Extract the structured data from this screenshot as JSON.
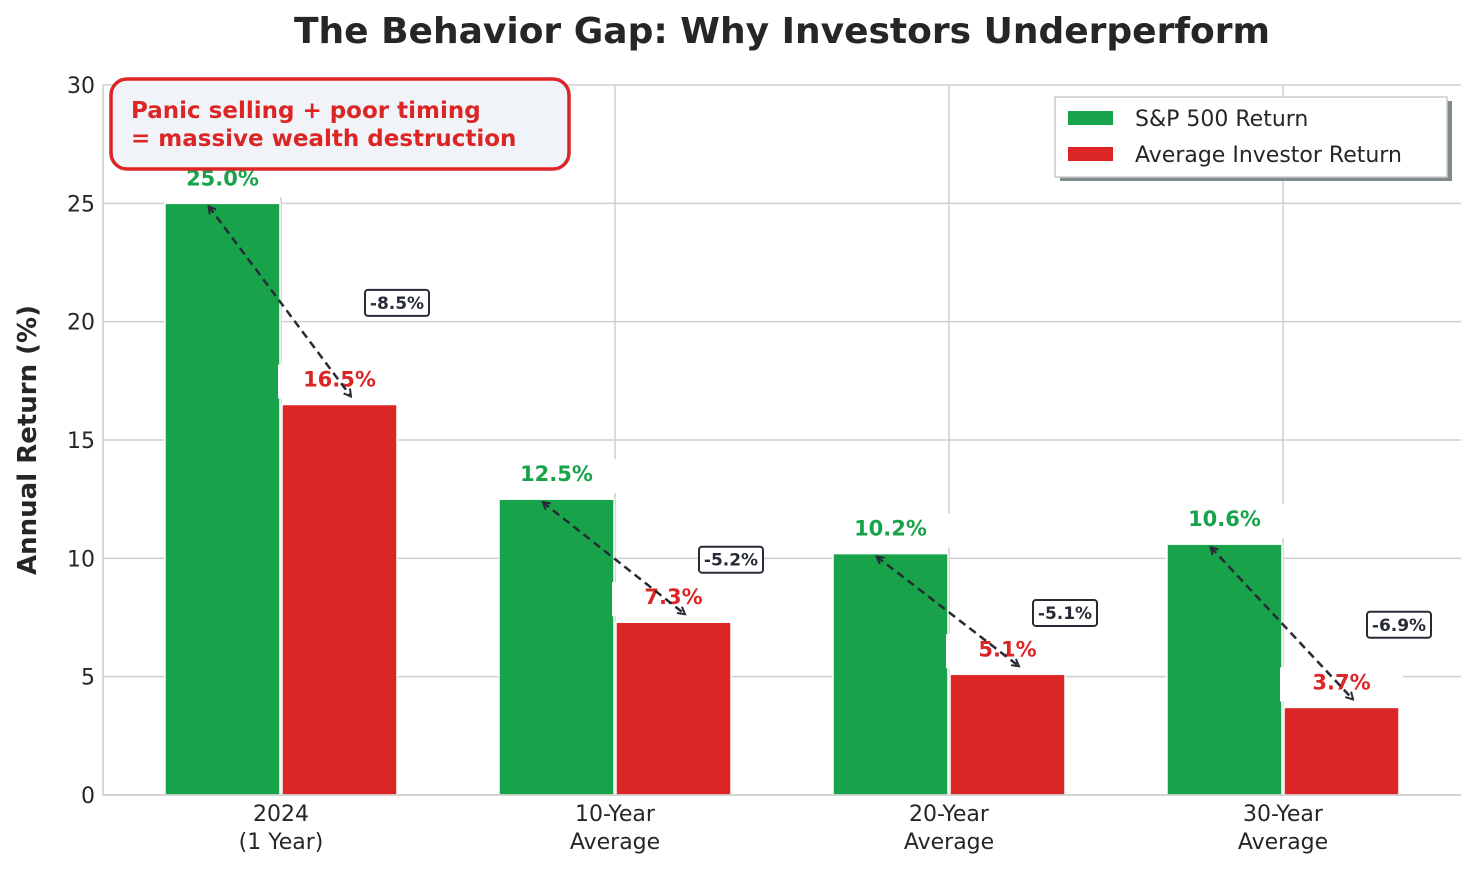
{
  "chart_data": {
    "type": "bar",
    "title": "The Behavior Gap: Why Investors Underperform",
    "xlabel": "",
    "ylabel": "Annual Return (%)",
    "ylim": [
      0,
      30
    ],
    "yticks": [
      0,
      5,
      10,
      15,
      20,
      25,
      30
    ],
    "grid": true,
    "legend_position": "top-right",
    "categories": [
      [
        "2024",
        "(1 Year)"
      ],
      [
        "10-Year",
        "Average"
      ],
      [
        "20-Year",
        "Average"
      ],
      [
        "30-Year",
        "Average"
      ]
    ],
    "series": [
      {
        "name": "S&P 500 Return",
        "color": "#18a34a",
        "values": [
          25.0,
          12.5,
          10.2,
          10.6
        ],
        "labels": [
          "25.0%",
          "12.5%",
          "10.2%",
          "10.6%"
        ]
      },
      {
        "name": "Average Investor Return",
        "color": "#dc2626",
        "values": [
          16.5,
          7.3,
          5.1,
          3.7
        ],
        "labels": [
          "16.5%",
          "7.3%",
          "5.1%",
          "3.7%"
        ]
      }
    ],
    "gaps": [
      "-8.5%",
      "-5.2%",
      "-5.1%",
      "-6.9%"
    ],
    "annotation": {
      "lines": [
        "Panic selling + poor timing",
        "= massive wealth destruction"
      ],
      "color": "#dc2626",
      "background": "#f0f4f8"
    },
    "colors": {
      "arrow": "#262b36",
      "grid": "#cfcfcf",
      "axis_text": "#262626"
    }
  }
}
